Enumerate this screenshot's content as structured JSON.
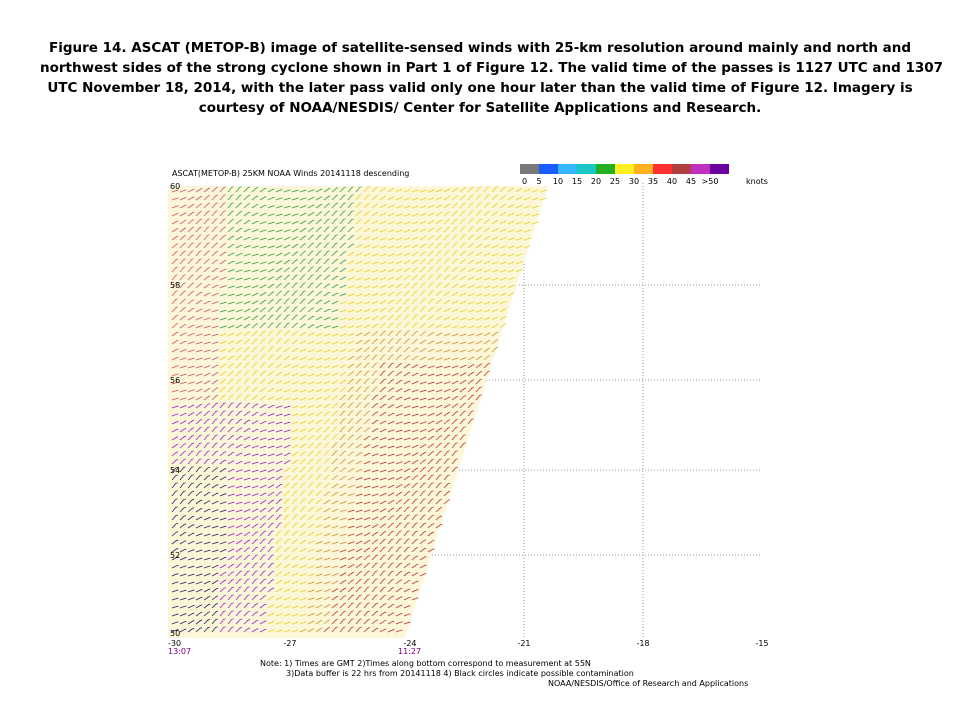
{
  "caption": [
    "Figure 14.  ASCAT (METOP-B) image of satellite-sensed winds with 25-km resolution around mainly and north and",
    "northwest sides of the strong cyclone shown in Part 1 of Figure 12.  The valid time of the passes is 1127 UTC and 1307",
    "UTC November 18, 2014, with the later pass valid only one hour later than the valid time of Figure 12.  Imagery is",
    "courtesy of NOAA/NESDIS/ Center for Satellite Applications  and Research."
  ],
  "figure": {
    "title": "ASCAT(METOP-B) 25KM NOAA Winds 20141118 descending",
    "colorbar_labels": [
      "0",
      "5",
      "10",
      "15",
      "20",
      "25",
      "30",
      "35",
      "40",
      "45",
      ">50",
      "knots"
    ],
    "lat_labels": [
      "60",
      "58",
      "56",
      "54",
      "52",
      "50"
    ],
    "lon_labels": [
      "-30",
      "-27",
      "-24",
      "-21",
      "-18",
      "-15"
    ],
    "times": [
      "13:07",
      "11:27"
    ],
    "notes": [
      "Note: 1) Times are GMT 2)Times along bottom correspond to measurement at 55N",
      "3)Data buffer is 22 hrs from 20141118 4) Black circles indicate possible contamination"
    ],
    "credit": "NOAA/NESDIS/Office of Research and Applications"
  }
}
